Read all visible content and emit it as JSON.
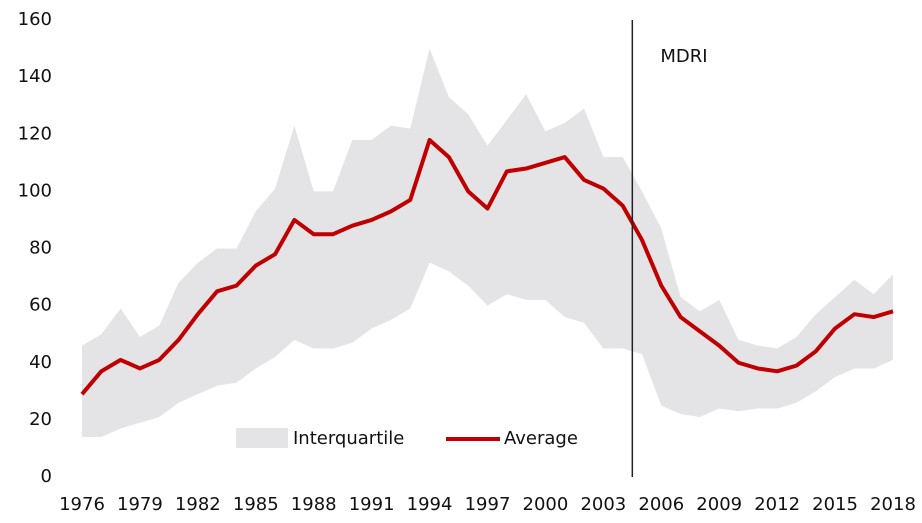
{
  "chart_data": {
    "type": "line",
    "x": [
      1976,
      1977,
      1978,
      1979,
      1980,
      1981,
      1982,
      1983,
      1984,
      1985,
      1986,
      1987,
      1988,
      1989,
      1990,
      1991,
      1992,
      1993,
      1994,
      1995,
      1996,
      1997,
      1998,
      1999,
      2000,
      2001,
      2002,
      2003,
      2004,
      2005,
      2006,
      2007,
      2008,
      2009,
      2010,
      2011,
      2012,
      2013,
      2014,
      2015,
      2016,
      2017,
      2018
    ],
    "series": [
      {
        "name": "Interquartile",
        "color": "#e4e3e5",
        "low": [
          14,
          14,
          17,
          19,
          21,
          26,
          29,
          32,
          33,
          38,
          42,
          48,
          45,
          45,
          47,
          52,
          55,
          59,
          75,
          72,
          67,
          60,
          64,
          62,
          62,
          56,
          54,
          45,
          45,
          43,
          25,
          22,
          21,
          24,
          23,
          24,
          24,
          26,
          30,
          35,
          38,
          38,
          41
        ],
        "high": [
          46,
          50,
          59,
          49,
          53,
          68,
          75,
          80,
          80,
          93,
          101,
          123,
          100,
          100,
          118,
          118,
          123,
          122,
          150,
          133,
          127,
          116,
          125,
          134,
          121,
          124,
          129,
          112,
          112,
          100,
          87,
          63,
          58,
          62,
          48,
          46,
          45,
          49,
          57,
          63,
          69,
          64,
          71
        ]
      },
      {
        "name": "Average",
        "color": "#c00000",
        "values": [
          29,
          37,
          41,
          38,
          41,
          48,
          57,
          65,
          67,
          74,
          78,
          90,
          85,
          85,
          88,
          90,
          93,
          97,
          118,
          112,
          100,
          94,
          107,
          108,
          110,
          112,
          104,
          101,
          95,
          83,
          67,
          56,
          51,
          46,
          40,
          38,
          37,
          39,
          44,
          52,
          57,
          56,
          58
        ]
      }
    ],
    "annotation": {
      "text": "MDRI",
      "x": 2004.5
    },
    "xlim": [
      1976,
      2018
    ],
    "xticks": [
      1976,
      1979,
      1982,
      1985,
      1988,
      1991,
      1994,
      1997,
      2000,
      2003,
      2006,
      2009,
      2012,
      2015,
      2018
    ],
    "ylim": [
      0,
      160
    ],
    "yticks": [
      0,
      20,
      40,
      60,
      80,
      100,
      120,
      140,
      160
    ],
    "grid": false
  }
}
